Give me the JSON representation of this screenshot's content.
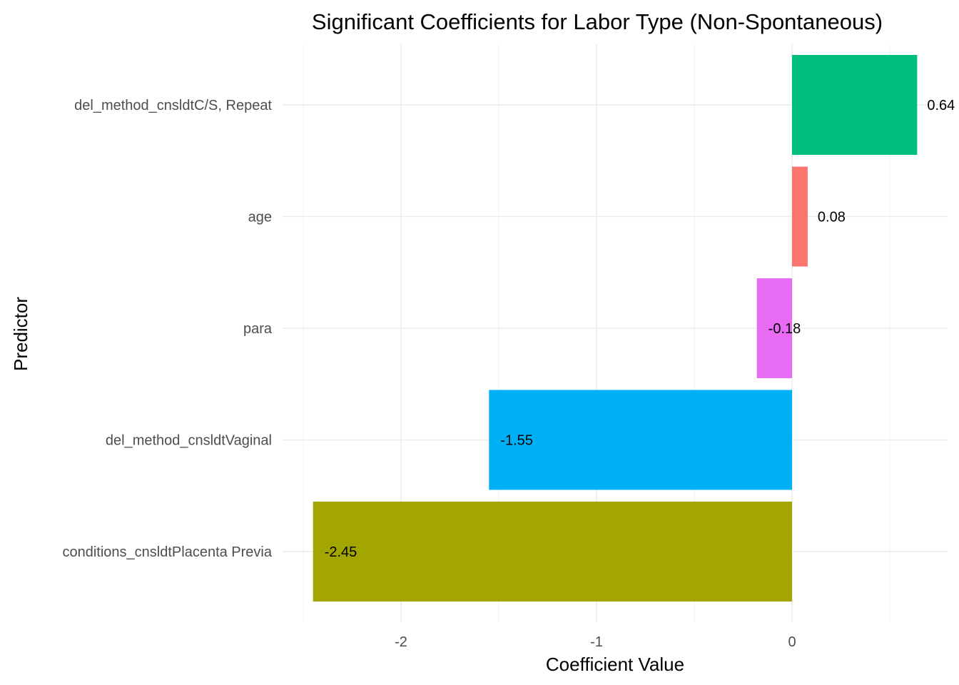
{
  "chart_data": {
    "type": "bar",
    "orientation": "horizontal",
    "title": "Significant Coefficients for Labor Type (Non-Spontaneous)",
    "xlabel": "Coefficient Value",
    "ylabel": "Predictor",
    "categories": [
      "del_method_cnsldtC/S, Repeat",
      "age",
      "para",
      "del_method_cnsldtVaginal",
      "conditions_cnsldtPlacenta Previa"
    ],
    "values": [
      0.64,
      0.08,
      -0.18,
      -1.55,
      -2.45
    ],
    "labels": [
      "0.64",
      "0.08",
      "-0.18",
      "-1.55",
      "-2.45"
    ],
    "colors": [
      "#00BF7D",
      "#F8766D",
      "#E76BF3",
      "#00B0F6",
      "#A3A500"
    ],
    "xlim": [
      -2.5,
      0.75
    ],
    "xticks": [
      -2,
      -1,
      0
    ],
    "xtick_labels": [
      "-2",
      "-1",
      "0"
    ],
    "grid": true,
    "legend": "none"
  }
}
